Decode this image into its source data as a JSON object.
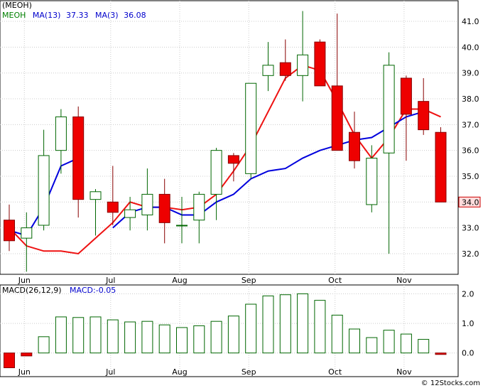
{
  "chart_data": [
    {
      "type": "candlestick",
      "symbol_label": "(MEOH)",
      "legend": [
        {
          "text": "MEOH",
          "color": "#008000"
        },
        {
          "text": "MA(13)",
          "value": "37.33",
          "color": "#0000cc"
        },
        {
          "text": "MA(3)",
          "value": "36.08",
          "color": "#0000cc"
        }
      ],
      "ylim": [
        31.2,
        41.8
      ],
      "yticks": [
        "32.0",
        "33.0",
        "34.0",
        "35.0",
        "36.0",
        "37.0",
        "38.0",
        "39.0",
        "40.0",
        "41.0"
      ],
      "last_price_label": "34.0",
      "last_price_value": 34.0,
      "month_labels": [
        {
          "label": "Jun",
          "week": 1
        },
        {
          "label": "Jul",
          "week": 6
        },
        {
          "label": "Aug",
          "week": 10
        },
        {
          "label": "Sep",
          "week": 14
        },
        {
          "label": "Oct",
          "week": 19
        },
        {
          "label": "Nov",
          "week": 23
        }
      ],
      "candles": [
        {
          "o": 33.3,
          "h": 33.9,
          "l": 32.1,
          "c": 32.5
        },
        {
          "o": 32.6,
          "h": 33.6,
          "l": 31.3,
          "c": 33.0
        },
        {
          "o": 33.1,
          "h": 36.8,
          "l": 32.9,
          "c": 35.8
        },
        {
          "o": 36.0,
          "h": 37.6,
          "l": 35.1,
          "c": 37.3
        },
        {
          "o": 37.3,
          "h": 37.7,
          "l": 33.4,
          "c": 34.1
        },
        {
          "o": 34.1,
          "h": 34.5,
          "l": 32.7,
          "c": 34.4
        },
        {
          "o": 34.0,
          "h": 35.4,
          "l": 33.1,
          "c": 33.6
        },
        {
          "o": 33.4,
          "h": 34.2,
          "l": 32.9,
          "c": 33.7
        },
        {
          "o": 33.5,
          "h": 35.3,
          "l": 32.9,
          "c": 34.3
        },
        {
          "o": 34.3,
          "h": 34.9,
          "l": 32.4,
          "c": 33.2
        },
        {
          "o": 33.1,
          "h": 34.2,
          "l": 32.4,
          "c": 33.1
        },
        {
          "o": 33.3,
          "h": 34.4,
          "l": 32.4,
          "c": 34.3
        },
        {
          "o": 34.3,
          "h": 36.1,
          "l": 33.3,
          "c": 36.0
        },
        {
          "o": 35.8,
          "h": 35.9,
          "l": 34.8,
          "c": 35.5
        },
        {
          "o": 35.1,
          "h": 38.6,
          "l": 34.9,
          "c": 38.6
        },
        {
          "o": 38.9,
          "h": 40.2,
          "l": 38.3,
          "c": 39.3
        },
        {
          "o": 39.4,
          "h": 40.3,
          "l": 38.7,
          "c": 38.9
        },
        {
          "o": 38.9,
          "h": 41.4,
          "l": 37.9,
          "c": 39.7
        },
        {
          "o": 40.2,
          "h": 40.3,
          "l": 38.5,
          "c": 38.5
        },
        {
          "o": 38.5,
          "h": 41.3,
          "l": 36.0,
          "c": 36.0
        },
        {
          "o": 36.7,
          "h": 37.5,
          "l": 35.3,
          "c": 35.6
        },
        {
          "o": 33.9,
          "h": 36.2,
          "l": 33.6,
          "c": 35.7
        },
        {
          "o": 35.9,
          "h": 39.8,
          "l": 32.0,
          "c": 39.3
        },
        {
          "o": 38.8,
          "h": 38.9,
          "l": 35.6,
          "c": 37.4
        },
        {
          "o": 37.9,
          "h": 38.8,
          "l": 36.6,
          "c": 36.8
        },
        {
          "o": 36.7,
          "h": 36.9,
          "l": 34.0,
          "c": 34.0
        }
      ],
      "ma_blue": [
        32.9,
        32.7,
        33.8,
        35.4,
        35.7,
        null,
        33.0,
        33.6,
        33.8,
        33.8,
        33.5,
        33.5,
        34.0,
        34.3,
        34.9,
        35.2,
        35.3,
        35.7,
        36.0,
        36.2,
        36.4,
        36.5,
        36.9,
        37.3,
        37.5,
        null
      ],
      "ma_red": [
        33.0,
        32.3,
        32.1,
        32.1,
        32.0,
        32.6,
        33.2,
        34.0,
        33.8,
        33.8,
        33.7,
        33.8,
        34.3,
        35.2,
        36.2,
        37.5,
        38.8,
        39.3,
        39.1,
        37.9,
        36.6,
        35.7,
        36.5,
        37.6,
        37.6,
        37.3
      ]
    },
    {
      "type": "bar",
      "title": "MACD(26,12,9)",
      "legend_value": "MACD:-0.05",
      "ylim": [
        -0.8,
        2.3
      ],
      "yticks": [
        "2.0",
        "1.0",
        "0.0"
      ],
      "values": [
        -0.5,
        -0.1,
        0.55,
        1.22,
        1.2,
        1.22,
        1.12,
        1.05,
        1.07,
        0.95,
        0.86,
        0.92,
        1.07,
        1.25,
        1.65,
        1.93,
        1.97,
        2.0,
        1.78,
        1.28,
        0.81,
        0.52,
        0.77,
        0.64,
        0.46,
        -0.05
      ]
    }
  ],
  "credit": "© 12Stocks.com"
}
